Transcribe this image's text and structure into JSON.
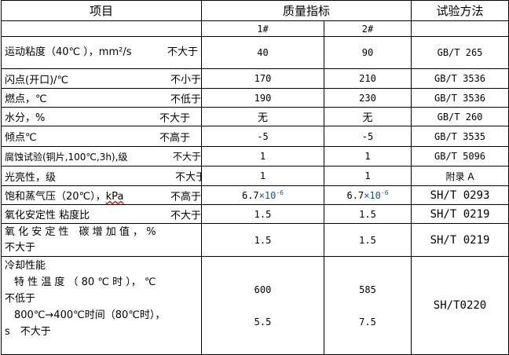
{
  "header": {
    "item": "项目",
    "quality": "质量指标",
    "method": "试验方法",
    "grade1": "1#",
    "grade2": "2#"
  },
  "rows": [
    {
      "name": "运动粘度（40℃ ），mm²/s",
      "limit": "不大于",
      "v1": "40",
      "v2": "90",
      "method": "GB/T 265"
    },
    {
      "name": "闪点(开口)/℃",
      "limit": "不小于",
      "v1": "170",
      "v2": "210",
      "method": "GB/T 3536"
    },
    {
      "name": "燃点，℃",
      "limit": "不低于",
      "v1": "190",
      "v2": "230",
      "method": "GB/T 3536"
    },
    {
      "name": "水分，%",
      "limit": "不大于",
      "v1": "无",
      "v2": "无",
      "method": "GB/T 260"
    },
    {
      "name": "倾点℃",
      "limit": "不高于",
      "v1": "-5",
      "v2": "-5",
      "method": "GB/T 3535"
    },
    {
      "name": "腐蚀试验(铜片,100℃,3h),级",
      "limit": "不大于",
      "v1": "1",
      "v2": "1",
      "method": "GB/T 5096"
    },
    {
      "name": "光亮性，级",
      "limit": "不大于",
      "v1": "1",
      "v2": "1",
      "method": "附录 A"
    },
    {
      "name": "饱和蒸气压（20℃），",
      "unit": "kPa",
      "limit": "不高于",
      "v1_base": "6.7",
      "v1_exp": "-6",
      "v2_base": "6.7",
      "v2_exp": "-6",
      "times": "×10",
      "method": "SH/T 0293"
    },
    {
      "name": "氧化安定性 粘度比",
      "limit": "不大于",
      "v1": "1.5",
      "v2": "1.5",
      "method": "SH/T 0219"
    },
    {
      "name": "氧 化 安 定 性　碳 增 加 值 ， %",
      "limit": "不大于",
      "v1": "1.5",
      "v2": "1.5",
      "method": "SH/T 0219"
    }
  ],
  "cooling": {
    "title": "冷却性能",
    "line1": "特 性 温 度 （ 80 ℃ 时 ）， ℃",
    "line1_limit": "不低于",
    "line2": "800℃→400℃时间（80℃时），",
    "line2_tail": "s　不大于",
    "v1a": "600",
    "v2a": "585",
    "v1b": "5.5",
    "v2b": "7.5",
    "method": "SH/T0220"
  }
}
